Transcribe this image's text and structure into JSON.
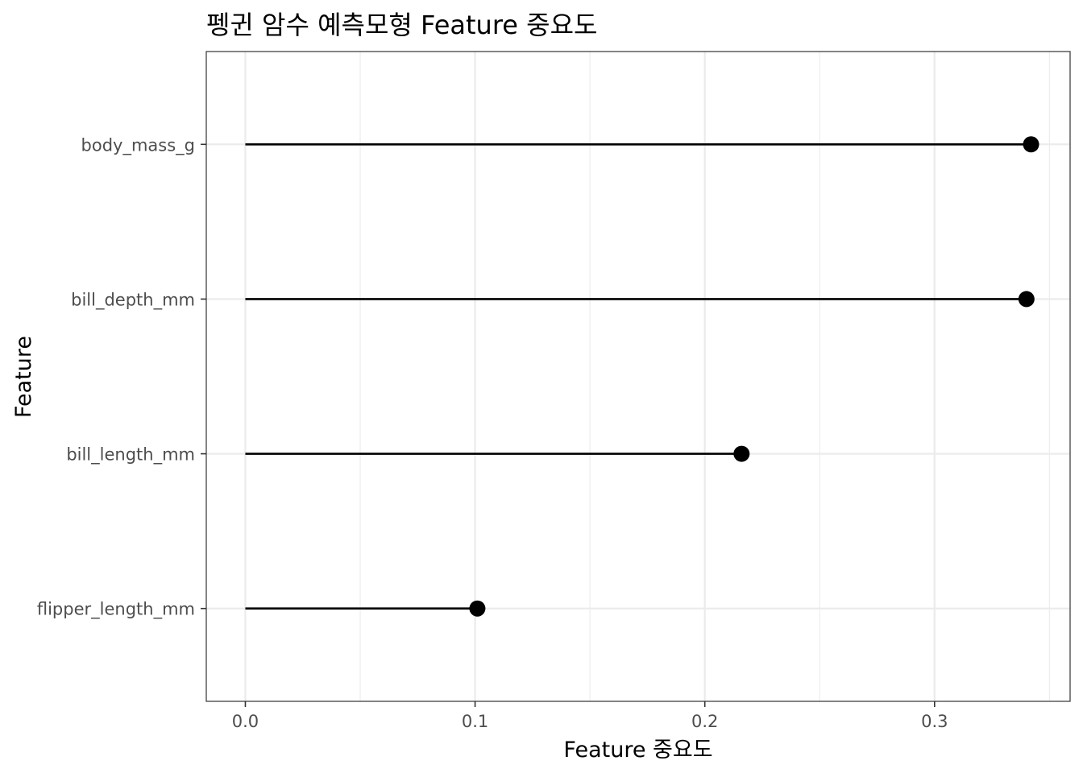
{
  "chart_data": {
    "type": "lollipop",
    "title": "펭귄 암수 예측모형 Feature 중요도",
    "xlabel": "Feature 중요도",
    "ylabel": "Feature",
    "xlim": [
      -0.017,
      0.359
    ],
    "x_ticks": [
      0.0,
      0.1,
      0.2,
      0.3
    ],
    "x_tick_labels": [
      "0.0",
      "0.1",
      "0.2",
      "0.3"
    ],
    "x_minor_ticks": [
      0.05,
      0.15,
      0.25,
      0.35
    ],
    "grid": true,
    "legend": "none",
    "categories": [
      "body_mass_g",
      "bill_depth_mm",
      "bill_length_mm",
      "flipper_length_mm"
    ],
    "values": [
      0.342,
      0.34,
      0.216,
      0.101
    ],
    "colors": {
      "mark": "#000000",
      "grid": "#ebebeb",
      "panel_border": "#333333",
      "tick_label": "#4d4d4d",
      "text": "#000000"
    }
  }
}
